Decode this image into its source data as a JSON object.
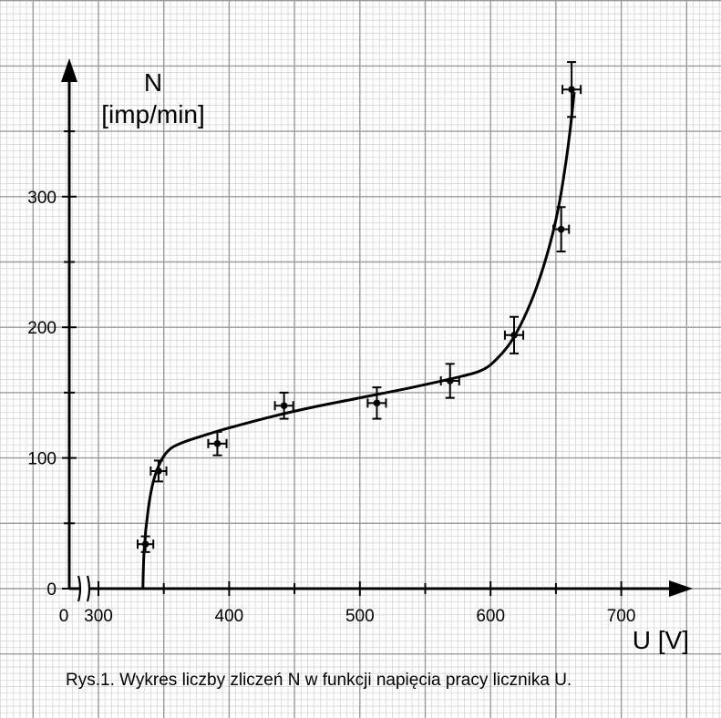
{
  "chart_data": {
    "type": "scatter",
    "title": "",
    "caption": "Rys.1. Wykres liczby zliczeń N w funkcji napięcia pracy licznika U.",
    "ylabel_line1": "N",
    "ylabel_line2": "[imp/min]",
    "xlabel": "U [V]",
    "x_origin_label": "0",
    "x_axis_break": true,
    "x_ticks": [
      300,
      400,
      500,
      600,
      700
    ],
    "y_ticks": [
      0,
      100,
      200,
      300
    ],
    "xlim": [
      290,
      770
    ],
    "ylim": [
      0,
      400
    ],
    "grid": true,
    "line_color": "#000000",
    "grid_minor_color": "#d6d6d6",
    "grid_major_color": "#9a9a9a",
    "series": [
      {
        "points": [
          {
            "x": 336,
            "y": 34,
            "xerr": 6,
            "yerr": 6
          },
          {
            "x": 346,
            "y": 90,
            "xerr": 6,
            "yerr": 8
          },
          {
            "x": 391,
            "y": 111,
            "xerr": 7,
            "yerr": 9
          },
          {
            "x": 442,
            "y": 140,
            "xerr": 7,
            "yerr": 10
          },
          {
            "x": 513,
            "y": 142,
            "xerr": 7,
            "yerr": 12
          },
          {
            "x": 569,
            "y": 159,
            "xerr": 7,
            "yerr": 13
          },
          {
            "x": 618,
            "y": 194,
            "xerr": 7,
            "yerr": 14
          },
          {
            "x": 654,
            "y": 275,
            "xerr": 6,
            "yerr": 17
          },
          {
            "x": 662,
            "y": 382,
            "xerr": 7,
            "yerr": 21
          }
        ]
      }
    ],
    "fit_curve": [
      [
        334,
        0
      ],
      [
        335,
        30
      ],
      [
        338,
        60
      ],
      [
        342,
        82
      ],
      [
        348,
        98
      ],
      [
        355,
        107
      ],
      [
        365,
        112
      ],
      [
        380,
        117
      ],
      [
        400,
        123
      ],
      [
        430,
        131
      ],
      [
        460,
        138
      ],
      [
        500,
        146
      ],
      [
        540,
        154
      ],
      [
        580,
        163
      ],
      [
        595,
        168
      ],
      [
        605,
        176
      ],
      [
        615,
        188
      ],
      [
        625,
        206
      ],
      [
        635,
        230
      ],
      [
        645,
        262
      ],
      [
        652,
        292
      ],
      [
        657,
        322
      ],
      [
        661,
        352
      ],
      [
        664,
        380
      ]
    ]
  }
}
